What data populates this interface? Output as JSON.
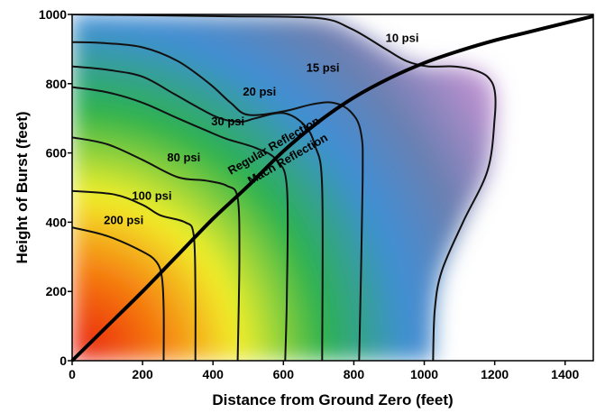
{
  "chart_data": {
    "type": "line",
    "xlabel": "Distance from Ground Zero (feet)",
    "ylabel": "Height of Burst (feet)",
    "xlim": [
      0,
      1480
    ],
    "ylim": [
      0,
      1000
    ],
    "x_ticks": [
      "0",
      "200",
      "400",
      "600",
      "800",
      "1000",
      "1200",
      "1400"
    ],
    "y_ticks": [
      "0",
      "200",
      "400",
      "600",
      "800",
      "1000"
    ],
    "grid": false,
    "contours": [
      {
        "label": "200 psi",
        "points": [
          [
            0,
            385
          ],
          [
            100,
            360
          ],
          [
            200,
            315
          ],
          [
            240,
            285
          ],
          [
            255,
            240
          ],
          [
            260,
            150
          ],
          [
            260,
            0
          ]
        ]
      },
      {
        "label": "100 psi",
        "points": [
          [
            0,
            490
          ],
          [
            120,
            480
          ],
          [
            200,
            450
          ],
          [
            250,
            420
          ],
          [
            320,
            400
          ],
          [
            345,
            365
          ],
          [
            350,
            200
          ],
          [
            350,
            0
          ]
        ]
      },
      {
        "label": "80 psi",
        "points": [
          [
            0,
            645
          ],
          [
            100,
            625
          ],
          [
            200,
            580
          ],
          [
            300,
            530
          ],
          [
            380,
            520
          ],
          [
            440,
            505
          ],
          [
            470,
            470
          ],
          [
            475,
            300
          ],
          [
            470,
            0
          ]
        ]
      },
      {
        "label": "30 psi",
        "points": [
          [
            0,
            790
          ],
          [
            100,
            775
          ],
          [
            200,
            745
          ],
          [
            300,
            700
          ],
          [
            380,
            665
          ],
          [
            440,
            640
          ],
          [
            520,
            615
          ],
          [
            580,
            580
          ],
          [
            610,
            500
          ],
          [
            610,
            200
          ],
          [
            605,
            0
          ]
        ]
      },
      {
        "label": "20 psi",
        "points": [
          [
            0,
            850
          ],
          [
            100,
            840
          ],
          [
            200,
            820
          ],
          [
            290,
            770
          ],
          [
            360,
            730
          ],
          [
            420,
            700
          ],
          [
            480,
            690
          ],
          [
            520,
            700
          ],
          [
            600,
            715
          ],
          [
            660,
            680
          ],
          [
            690,
            620
          ],
          [
            710,
            500
          ],
          [
            710,
            0
          ]
        ]
      },
      {
        "label": "15 psi",
        "points": [
          [
            0,
            920
          ],
          [
            80,
            918
          ],
          [
            200,
            905
          ],
          [
            300,
            865
          ],
          [
            390,
            800
          ],
          [
            450,
            745
          ],
          [
            500,
            710
          ],
          [
            600,
            720
          ],
          [
            680,
            740
          ],
          [
            740,
            745
          ],
          [
            790,
            720
          ],
          [
            820,
            660
          ],
          [
            825,
            520
          ],
          [
            815,
            0
          ]
        ]
      },
      {
        "label": "10 psi",
        "points": [
          [
            0,
            1000
          ],
          [
            400,
            995
          ],
          [
            690,
            990
          ],
          [
            790,
            960
          ],
          [
            890,
            900
          ],
          [
            950,
            865
          ],
          [
            1010,
            850
          ],
          [
            1080,
            850
          ],
          [
            1140,
            840
          ],
          [
            1180,
            820
          ],
          [
            1200,
            780
          ],
          [
            1200,
            700
          ],
          [
            1180,
            550
          ],
          [
            1110,
            400
          ],
          [
            1050,
            260
          ],
          [
            1030,
            150
          ],
          [
            1025,
            0
          ]
        ]
      }
    ],
    "boundary": {
      "points": [
        [
          0,
          0
        ],
        [
          100,
          100
        ],
        [
          200,
          200
        ],
        [
          300,
          305
        ],
        [
          400,
          410
        ],
        [
          500,
          505
        ],
        [
          600,
          605
        ],
        [
          700,
          690
        ],
        [
          800,
          760
        ],
        [
          900,
          815
        ],
        [
          1000,
          860
        ],
        [
          1100,
          895
        ],
        [
          1200,
          925
        ],
        [
          1300,
          950
        ],
        [
          1400,
          975
        ],
        [
          1480,
          995
        ]
      ]
    },
    "region_labels": [
      "Regular Reflection",
      "Mach Reflection"
    ],
    "colors": {
      "red": "#e8140a",
      "orange": "#f5a21b",
      "yellow": "#f2f02a",
      "green": "#2bb24c",
      "blue": "#3f8fd6",
      "slate": "#6a7fb0",
      "purple": "#b88fce",
      "lavender": "#e6d9f0"
    }
  }
}
